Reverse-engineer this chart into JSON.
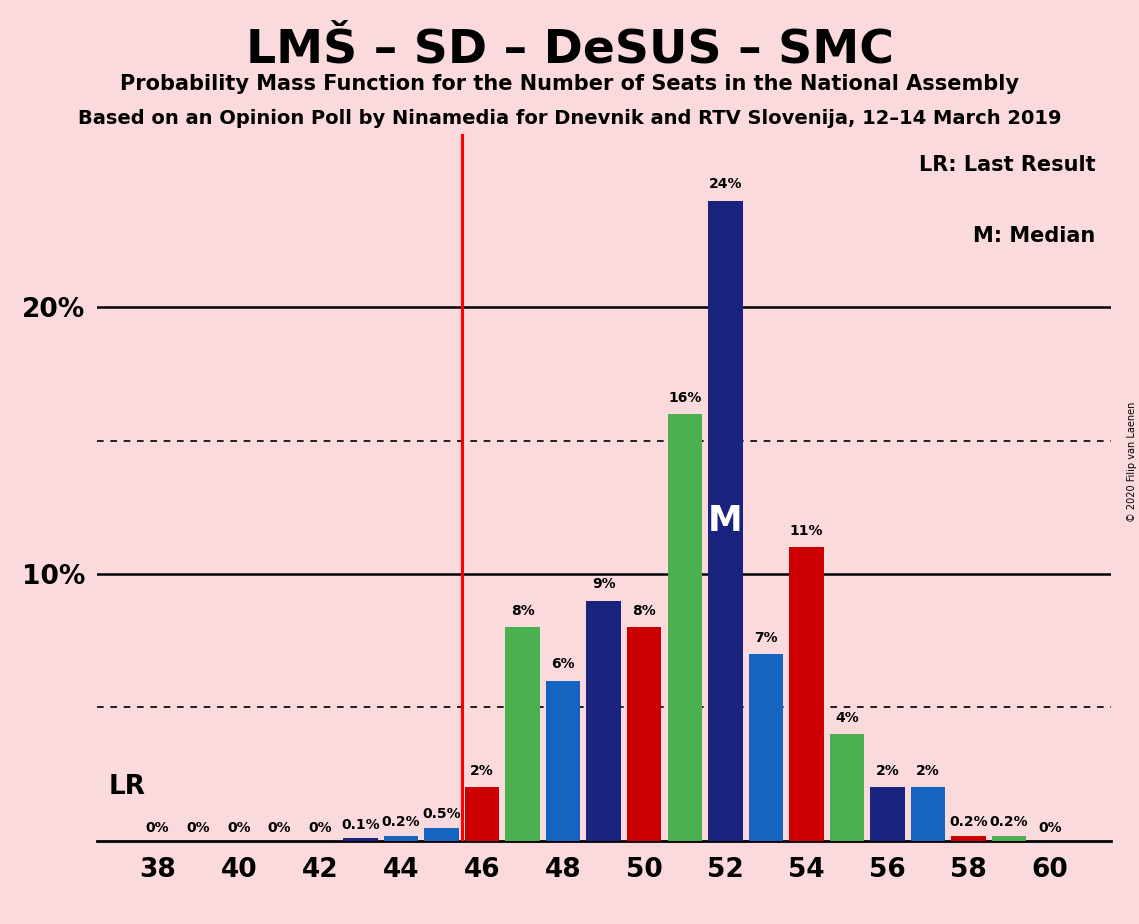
{
  "title": "LMŠ – SD – DeSUS – SMC",
  "subtitle": "Probability Mass Function for the Number of Seats in the National Assembly",
  "subtitle2": "Based on an Opinion Poll by Ninamedia for Dnevnik and RTV Slovenija, 12–14 March 2019",
  "copyright": "© 2020 Filip van Laenen",
  "background_color": "#fadadd",
  "lr_x": 45.5,
  "median_x": 51,
  "seats": [
    38,
    39,
    40,
    41,
    42,
    43,
    44,
    45,
    46,
    47,
    48,
    49,
    50,
    51,
    52,
    53,
    54,
    55,
    56,
    57,
    58,
    59,
    60
  ],
  "values": [
    0.0,
    0.0,
    0.0,
    0.0,
    0.0,
    0.1,
    0.2,
    0.5,
    2.0,
    8.0,
    6.0,
    9.0,
    8.0,
    16.0,
    24.0,
    7.0,
    11.0,
    4.0,
    2.0,
    2.0,
    0.2,
    0.2,
    0.0
  ],
  "bar_colors": [
    "#1a237e",
    "#cc0000",
    "#4caf50",
    "#1565c0",
    "#1a237e",
    "#1a237e",
    "#1565c0",
    "#1565c0",
    "#cc0000",
    "#4caf50",
    "#1565c0",
    "#1a237e",
    "#cc0000",
    "#4caf50",
    "#1a237e",
    "#1565c0",
    "#cc0000",
    "#4caf50",
    "#1a237e",
    "#1565c0",
    "#cc0000",
    "#4caf50",
    "#1a237e"
  ],
  "labels": [
    "0%",
    "0%",
    "0%",
    "0%",
    "0%",
    "0.1%",
    "0.2%",
    "0.5%",
    "2%",
    "8%",
    "6%",
    "9%",
    "8%",
    "16%",
    "24%",
    "7%",
    "11%",
    "4%",
    "2%",
    "2%",
    "0.2%",
    "0.2%",
    "0%"
  ],
  "xlim": [
    36.5,
    61.5
  ],
  "ylim": [
    0,
    26.5
  ],
  "xticks": [
    38,
    40,
    42,
    44,
    46,
    48,
    50,
    52,
    54,
    56,
    58,
    60
  ],
  "yticks_solid": [
    10,
    20
  ],
  "yticks_dotted": [
    5,
    15
  ],
  "bar_width": 0.85,
  "label_fontsize": 10,
  "title_fontsize": 34,
  "subtitle_fontsize": 15,
  "subtitle2_fontsize": 14,
  "tick_fontsize": 19,
  "legend_fontsize": 15,
  "lr_label_fontsize": 19,
  "median_label_fontsize": 25
}
